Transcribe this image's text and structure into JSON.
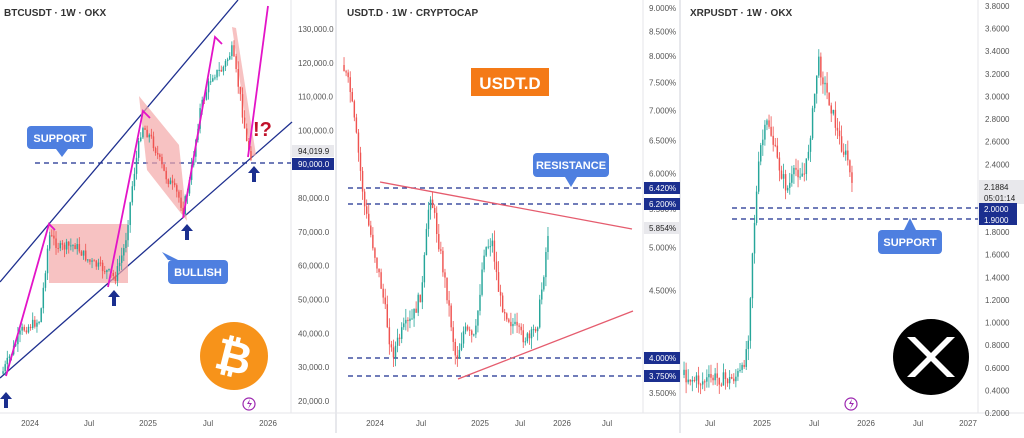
{
  "colors": {
    "up": "#26a69a",
    "down": "#ef5350",
    "channel": "#1e2f8f",
    "level": "#1b2f8f",
    "arrow_magenta": "#e314c7",
    "rect_fill": "#f4a8a8",
    "triangle_red": "#e55c6e",
    "label_blue": "#4e7fe0",
    "btc_orange": "#f7931a",
    "usdt_badge": "#f47a17",
    "price_tag_dark": "#1b2f8f",
    "price_tag_gray": "#e8e8ec"
  },
  "chart_data": [
    {
      "type": "candlestick",
      "title": "BTCUSDT · 1W · OKX",
      "timeframe": "1W",
      "exchange": "OKX",
      "x_ticks": [
        "2024",
        "Jul",
        "2025",
        "Jul",
        "2026"
      ],
      "y_ticks": [
        "130,000.0",
        "120,000.0",
        "110,000.0",
        "100,000.0",
        "90,000.0",
        "80,000.0",
        "70,000.0",
        "60,000.0",
        "50,000.0",
        "40,000.0",
        "30,000.0",
        "20,000.0"
      ],
      "ylim": [
        18000,
        138000
      ],
      "y_scale": "linear",
      "current_price": "94,019.9",
      "level_tag": "90,000.0",
      "annotations": [
        "SUPPORT",
        "BULLISH",
        "!?"
      ],
      "grid": false
    },
    {
      "type": "candlestick",
      "title": "USDT.D · 1W · CRYPTOCAP",
      "timeframe": "1W",
      "exchange": "CRYPTOCAP",
      "badge": "USDT.D",
      "x_ticks": [
        "2024",
        "Jul",
        "2025",
        "Jul",
        "2026",
        "Jul"
      ],
      "y_ticks": [
        "9.000%",
        "8.500%",
        "8.000%",
        "7.500%",
        "7.000%",
        "6.500%",
        "6.000%",
        "5.500%",
        "5.000%",
        "4.500%",
        "3.500%"
      ],
      "ylim": [
        3.2,
        9.0
      ],
      "y_scale": "log",
      "current_price": "5.854%",
      "level_tags": [
        "6.420%",
        "6.200%",
        "4.000%",
        "3.750%"
      ],
      "annotations": [
        "RESISTANCE"
      ],
      "grid": false
    },
    {
      "type": "candlestick",
      "title": "XRPUSDT · 1W · OKX",
      "timeframe": "1W",
      "exchange": "OKX",
      "x_ticks": [
        "Jul",
        "2025",
        "Jul",
        "2026",
        "Jul",
        "2027"
      ],
      "y_ticks": [
        "3.8000",
        "3.6000",
        "3.4000",
        "3.2000",
        "3.0000",
        "2.8000",
        "2.6000",
        "2.4000",
        "2.2000",
        "1.8000",
        "1.6000",
        "1.4000",
        "1.2000",
        "1.0000",
        "0.8000",
        "0.6000",
        "0.4000",
        "0.2000"
      ],
      "ylim": [
        0.2,
        3.8
      ],
      "y_scale": "linear",
      "current_price": "2.1884",
      "countdown": "05:01:14",
      "level_tags": [
        "2.0000",
        "1.9000"
      ],
      "annotations": [
        "SUPPORT"
      ],
      "grid": false
    }
  ]
}
